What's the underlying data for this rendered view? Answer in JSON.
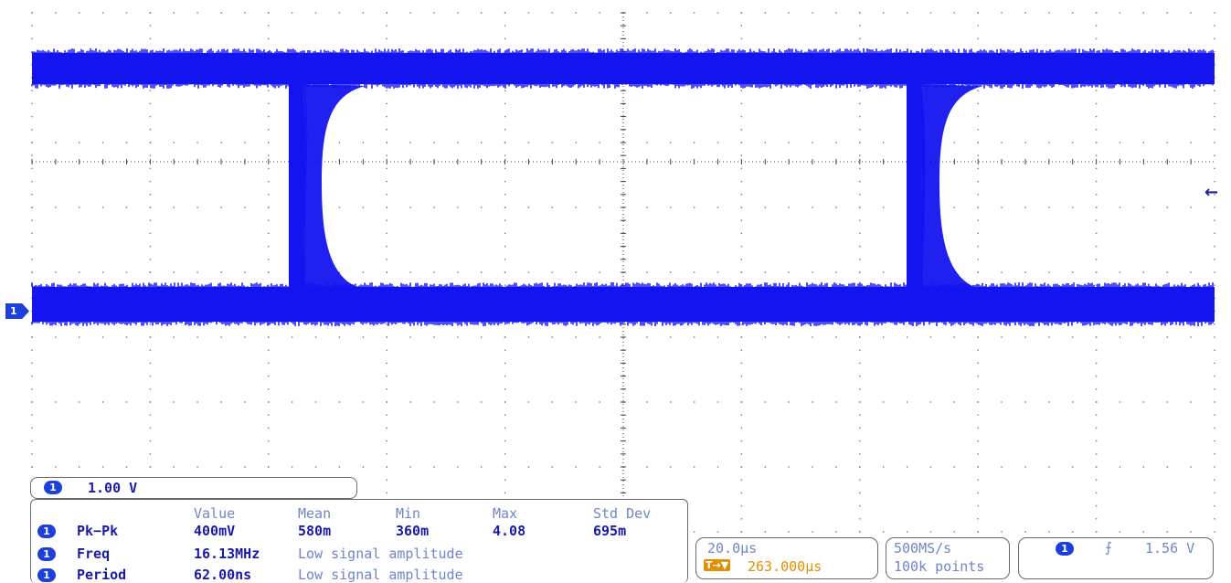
{
  "trace": {
    "channel": "1",
    "color": "#1414f0"
  },
  "scale_box": {
    "channel": "1",
    "value": "1.00 V"
  },
  "measurements": {
    "headers": [
      "Value",
      "Mean",
      "Min",
      "Max",
      "Std Dev"
    ],
    "rows": [
      {
        "channel": "1",
        "name": "Pk−Pk",
        "value": "400mV",
        "mean": "580m",
        "min": "360m",
        "max": "4.08",
        "std": "695m"
      },
      {
        "channel": "1",
        "name": "Freq",
        "value": "16.13MHz",
        "note": "Low signal amplitude"
      },
      {
        "channel": "1",
        "name": "Period",
        "value": "62.00ns",
        "note": "Low signal amplitude"
      }
    ]
  },
  "timebase": {
    "scale": "20.0µs",
    "trigger_icon": "T→▼",
    "position": "263.000µs"
  },
  "acquisition": {
    "rate": "500MS/s",
    "points": "100k points"
  },
  "trigger": {
    "channel": "1",
    "slope_icon": "rising-edge-icon",
    "slope_glyph": "⨍",
    "level": "1.56 V"
  },
  "markers": {
    "ground_channel": "1",
    "trigger_arrow": "←"
  }
}
